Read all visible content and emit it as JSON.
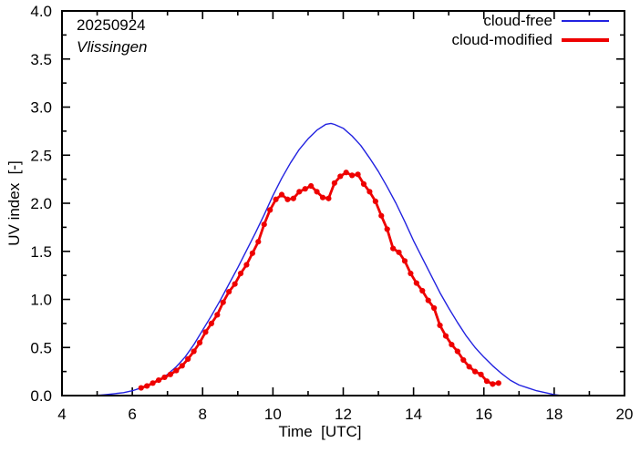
{
  "chart": {
    "date": "20250924",
    "station": "Vlissingen",
    "xlabel": "Time  [UTC]",
    "ylabel": "UV index  [-]",
    "legend": {
      "cloud_free": "cloud-free",
      "cloud_modified": "cloud-modified"
    },
    "colors": {
      "cloud_free": "#2222e0",
      "cloud_modified": "#ee0000",
      "axis": "#000000",
      "background": "#ffffff"
    }
  },
  "chart_data": {
    "type": "line",
    "title": "20250924 Vlissingen",
    "xlabel": "Time [UTC]",
    "ylabel": "UV index [-]",
    "xlim": [
      4,
      20
    ],
    "ylim": [
      0.0,
      4.0
    ],
    "x_major_step": 2,
    "x_minor_step": 1,
    "y_major_step": 0.5,
    "y_minor_step": 0.25,
    "grid": false,
    "legend_position": "top-right-inside",
    "series": [
      {
        "name": "cloud-free",
        "color": "#2222e0",
        "style": "line",
        "line_width": 1.4,
        "x": [
          4.95,
          5.25,
          5.5,
          5.75,
          6.0,
          6.25,
          6.5,
          6.75,
          7.0,
          7.25,
          7.5,
          7.75,
          8.0,
          8.25,
          8.5,
          8.75,
          9.0,
          9.25,
          9.5,
          9.75,
          10.0,
          10.25,
          10.5,
          10.75,
          11.0,
          11.25,
          11.5,
          11.65,
          11.75,
          12.0,
          12.25,
          12.5,
          12.75,
          13.0,
          13.25,
          13.5,
          13.75,
          14.0,
          14.25,
          14.5,
          14.75,
          15.0,
          15.25,
          15.5,
          15.75,
          16.0,
          16.25,
          16.5,
          16.75,
          17.0,
          17.25,
          17.5,
          17.75,
          18.0,
          18.2
        ],
        "y": [
          0.0,
          0.01,
          0.02,
          0.03,
          0.05,
          0.08,
          0.12,
          0.16,
          0.22,
          0.3,
          0.4,
          0.53,
          0.68,
          0.83,
          0.99,
          1.16,
          1.33,
          1.51,
          1.69,
          1.88,
          2.08,
          2.26,
          2.42,
          2.56,
          2.67,
          2.76,
          2.82,
          2.83,
          2.82,
          2.78,
          2.7,
          2.6,
          2.47,
          2.33,
          2.17,
          2.0,
          1.81,
          1.61,
          1.43,
          1.25,
          1.07,
          0.91,
          0.76,
          0.62,
          0.5,
          0.4,
          0.31,
          0.23,
          0.16,
          0.11,
          0.08,
          0.05,
          0.03,
          0.01,
          0.0
        ]
      },
      {
        "name": "cloud-modified",
        "color": "#ee0000",
        "style": "line+markers",
        "line_width": 2.8,
        "marker": "filled-circle",
        "marker_radius": 3.1,
        "x": [
          6.25,
          6.417,
          6.583,
          6.75,
          6.917,
          7.083,
          7.25,
          7.417,
          7.583,
          7.75,
          7.917,
          8.083,
          8.25,
          8.417,
          8.583,
          8.75,
          8.917,
          9.083,
          9.25,
          9.417,
          9.583,
          9.75,
          9.917,
          10.083,
          10.25,
          10.417,
          10.583,
          10.75,
          10.917,
          11.083,
          11.25,
          11.417,
          11.583,
          11.75,
          11.917,
          12.083,
          12.25,
          12.417,
          12.583,
          12.75,
          12.917,
          13.083,
          13.25,
          13.417,
          13.583,
          13.75,
          13.917,
          14.083,
          14.25,
          14.417,
          14.583,
          14.75,
          14.917,
          15.083,
          15.25,
          15.417,
          15.583,
          15.75,
          15.917,
          16.083,
          16.25,
          16.417
        ],
        "y": [
          0.08,
          0.1,
          0.13,
          0.16,
          0.19,
          0.22,
          0.26,
          0.31,
          0.38,
          0.46,
          0.55,
          0.66,
          0.75,
          0.84,
          0.97,
          1.08,
          1.16,
          1.27,
          1.36,
          1.48,
          1.6,
          1.78,
          1.93,
          2.04,
          2.09,
          2.04,
          2.05,
          2.12,
          2.15,
          2.18,
          2.12,
          2.06,
          2.05,
          2.21,
          2.28,
          2.32,
          2.29,
          2.3,
          2.2,
          2.12,
          2.02,
          1.87,
          1.73,
          1.53,
          1.49,
          1.4,
          1.27,
          1.17,
          1.09,
          0.99,
          0.91,
          0.73,
          0.62,
          0.53,
          0.46,
          0.37,
          0.3,
          0.25,
          0.22,
          0.15,
          0.12,
          0.13
        ]
      }
    ]
  }
}
